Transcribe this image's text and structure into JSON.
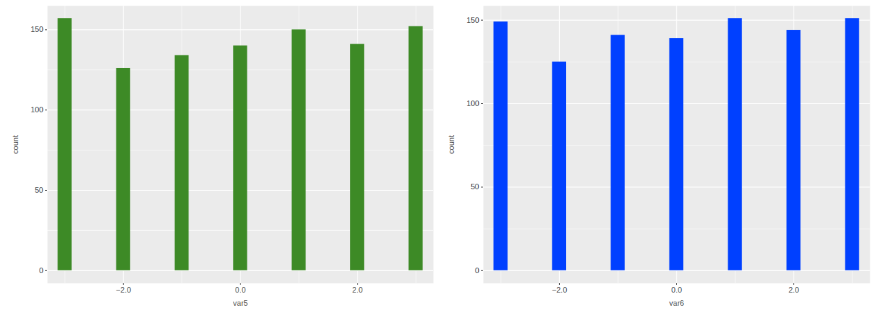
{
  "chart_data": [
    {
      "type": "bar",
      "x": [
        -3,
        -2,
        -1,
        0,
        1,
        2,
        3
      ],
      "values": [
        157,
        126,
        134,
        140,
        150,
        141,
        152
      ],
      "color": "#3d8a26",
      "xlabel": "var5",
      "ylabel": "count",
      "xlim": [
        -3.3,
        3.3
      ],
      "ylim": [
        -7.85,
        164.85
      ],
      "xticks": [
        -2,
        0,
        2
      ],
      "yticks": [
        0,
        50,
        100,
        150
      ],
      "grid": true
    },
    {
      "type": "bar",
      "x": [
        -3,
        -2,
        -1,
        0,
        1,
        2,
        3
      ],
      "values": [
        149,
        125,
        141,
        139,
        151,
        144,
        151
      ],
      "color": "#0040ff",
      "xlabel": "var6",
      "ylabel": "count",
      "xlim": [
        -3.3,
        3.3
      ],
      "ylim": [
        -7.55,
        158.55
      ],
      "xticks": [
        -2,
        0,
        2
      ],
      "yticks": [
        0,
        50,
        100,
        150
      ],
      "grid": true
    }
  ]
}
